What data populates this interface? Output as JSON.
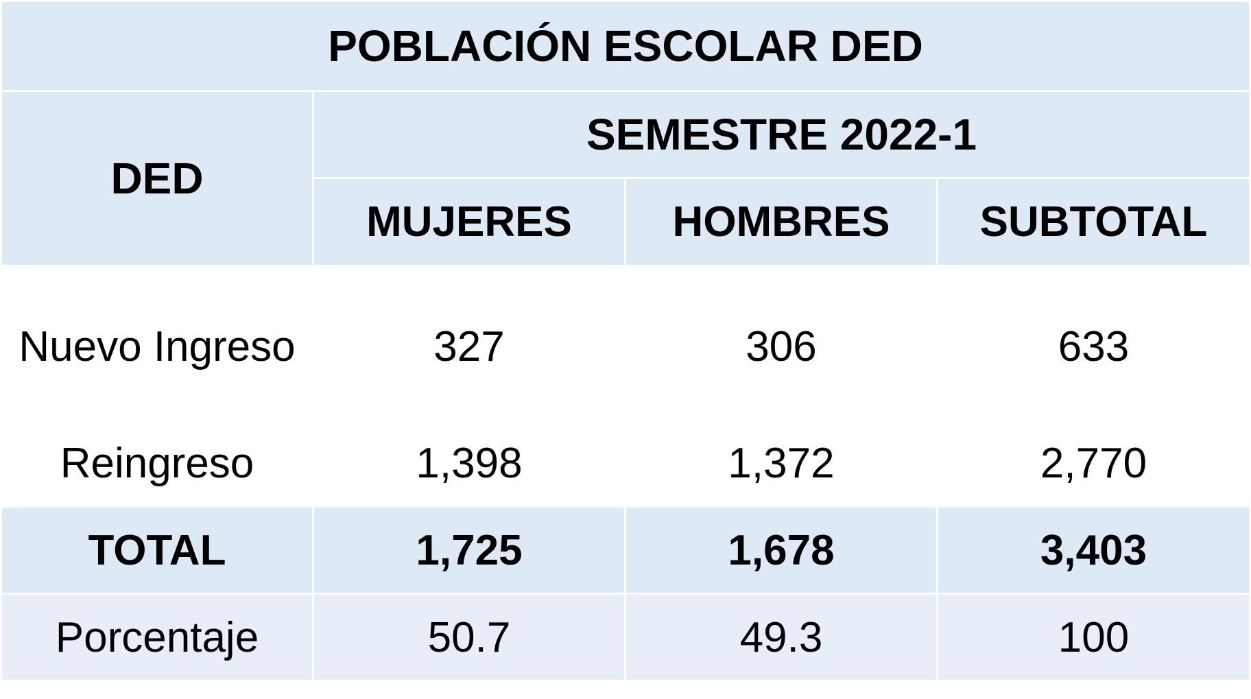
{
  "table": {
    "title": "POBLACIÓN ESCOLAR DED",
    "row_header": "DED",
    "group_header": "SEMESTRE 2022-1",
    "columns": [
      "MUJERES",
      "HOMBRES",
      "SUBTOTAL"
    ],
    "rows": [
      {
        "label": "Nuevo Ingreso",
        "values": [
          "327",
          "306",
          "633"
        ]
      },
      {
        "label": "Reingreso",
        "values": [
          "1,398",
          "1,372",
          "2,770"
        ]
      }
    ],
    "total": {
      "label": "TOTAL",
      "values": [
        "1,725",
        "1,678",
        "3,403"
      ]
    },
    "percentage": {
      "label": "Porcentaje",
      "values": [
        "50.7",
        "49.3",
        "100"
      ]
    },
    "colors": {
      "header_bg": "#dde9f5",
      "percentage_bg": "#e7eef7",
      "grid_lines": "#ffffff"
    }
  }
}
